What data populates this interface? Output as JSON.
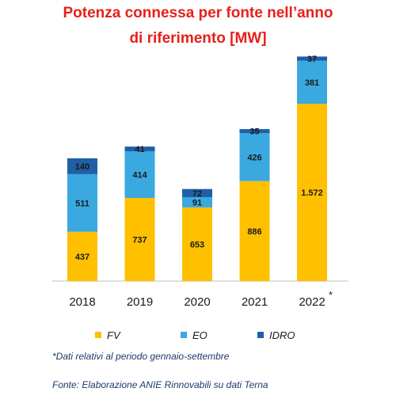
{
  "title": {
    "line1": "Potenza connessa per fonte nell’anno",
    "line2": "di riferimento [MW]"
  },
  "chart_data": {
    "type": "bar",
    "stacked": true,
    "categories": [
      "2018",
      "2019",
      "2020",
      "2021",
      "2022"
    ],
    "category_suffix": [
      "",
      "",
      "",
      "",
      "*"
    ],
    "series": [
      {
        "name": "FV",
        "color": "#ffc000",
        "values": [
          437,
          737,
          653,
          886,
          1572
        ],
        "labels": [
          "437",
          "737",
          "653",
          "886",
          "1.572"
        ]
      },
      {
        "name": "EO",
        "color": "#3aa9e0",
        "values": [
          511,
          414,
          91,
          426,
          381
        ],
        "labels": [
          "511",
          "414",
          "91",
          "426",
          "381"
        ]
      },
      {
        "name": "IDRO",
        "color": "#1f5fa6",
        "values": [
          140,
          41,
          72,
          35,
          37
        ],
        "labels": [
          "140",
          "41",
          "72",
          "35",
          "37"
        ]
      }
    ],
    "ylim": [
      0,
      2000
    ],
    "grid": false,
    "legend_position": "bottom"
  },
  "notes": {
    "asterisk": "*Dati relativi al periodo gennaio-settembre",
    "source": "Fonte: Elaborazione ANIE Rinnovabili su dati Terna"
  }
}
